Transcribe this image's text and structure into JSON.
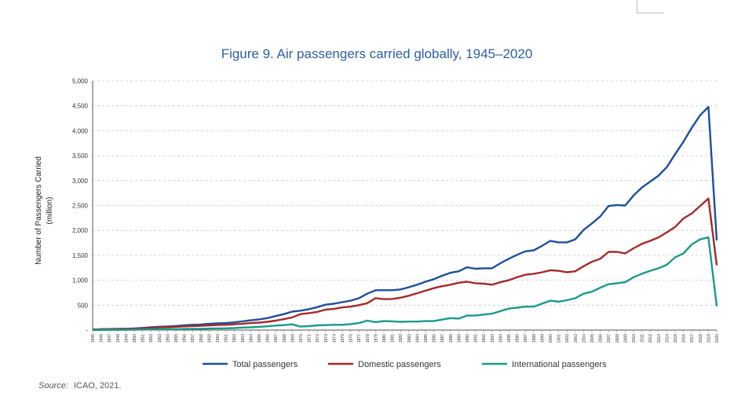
{
  "chart_data": {
    "type": "line",
    "title": "Figure 9. Air passengers carried globally, 1945–2020",
    "ylabel": "Number of Passengers Carried",
    "ylabel_unit": "(million)",
    "ylim": [
      0,
      5000
    ],
    "yticks": [
      "-",
      "500",
      "1,000",
      "1,500",
      "2,000",
      "2,500",
      "3,000",
      "3,500",
      "4,000",
      "4,500",
      "5,000"
    ],
    "grid": true,
    "legend_position": "bottom",
    "x": [
      1945,
      1946,
      1947,
      1948,
      1949,
      1950,
      1951,
      1952,
      1953,
      1954,
      1955,
      1956,
      1957,
      1958,
      1959,
      1960,
      1961,
      1962,
      1963,
      1964,
      1965,
      1966,
      1967,
      1968,
      1969,
      1970,
      1971,
      1972,
      1973,
      1974,
      1975,
      1976,
      1977,
      1978,
      1979,
      1980,
      1981,
      1982,
      1983,
      1984,
      1985,
      1986,
      1987,
      1988,
      1989,
      1990,
      1991,
      1992,
      1993,
      1994,
      1995,
      1996,
      1997,
      1998,
      1999,
      2000,
      2001,
      2002,
      2003,
      2004,
      2005,
      2006,
      2007,
      2008,
      2009,
      2010,
      2011,
      2012,
      2013,
      2014,
      2015,
      2016,
      2017,
      2018,
      2019,
      2020
    ],
    "series": [
      {
        "name": "Total passengers",
        "color": "#1f4e9c",
        "values": [
          9,
          18,
          21,
          24,
          27,
          31,
          42,
          57,
          67,
          72,
          82,
          96,
          105,
          110,
          125,
          135,
          140,
          155,
          175,
          195,
          215,
          240,
          280,
          320,
          370,
          390,
          420,
          460,
          510,
          530,
          560,
          590,
          640,
          730,
          800,
          800,
          800,
          815,
          860,
          910,
          970,
          1020,
          1090,
          1150,
          1180,
          1260,
          1230,
          1240,
          1240,
          1340,
          1430,
          1510,
          1580,
          1600,
          1690,
          1790,
          1760,
          1760,
          1820,
          2010,
          2140,
          2280,
          2490,
          2510,
          2500,
          2700,
          2860,
          2980,
          3100,
          3270,
          3530,
          3780,
          4060,
          4310,
          4480,
          1800
        ]
      },
      {
        "name": "Domestic passengers",
        "color": "#a52a2a",
        "values": [
          8,
          15,
          17,
          19,
          22,
          25,
          33,
          45,
          52,
          56,
          64,
          74,
          80,
          85,
          95,
          102,
          106,
          115,
          125,
          140,
          150,
          165,
          190,
          220,
          255,
          320,
          340,
          365,
          410,
          425,
          455,
          470,
          500,
          540,
          640,
          620,
          625,
          650,
          690,
          740,
          790,
          840,
          880,
          910,
          950,
          970,
          940,
          930,
          910,
          960,
          1000,
          1060,
          1110,
          1130,
          1160,
          1200,
          1190,
          1160,
          1180,
          1280,
          1370,
          1430,
          1570,
          1570,
          1540,
          1640,
          1730,
          1790,
          1860,
          1960,
          2070,
          2240,
          2340,
          2490,
          2640,
          1300
        ]
      },
      {
        "name": "International passengers",
        "color": "#1a9a8a",
        "values": [
          1,
          3,
          4,
          5,
          5,
          6,
          9,
          12,
          15,
          16,
          18,
          22,
          25,
          25,
          30,
          33,
          34,
          40,
          50,
          55,
          65,
          75,
          90,
          100,
          115,
          70,
          80,
          95,
          100,
          105,
          105,
          120,
          140,
          190,
          160,
          180,
          175,
          165,
          170,
          170,
          180,
          180,
          210,
          240,
          230,
          290,
          290,
          310,
          330,
          380,
          430,
          450,
          470,
          470,
          530,
          590,
          570,
          600,
          640,
          730,
          770,
          850,
          920,
          940,
          960,
          1060,
          1130,
          1190,
          1240,
          1310,
          1460,
          1540,
          1720,
          1820,
          1860,
          480
        ]
      }
    ]
  },
  "source": {
    "label": "Source:",
    "text": "ICAO, 2021."
  }
}
